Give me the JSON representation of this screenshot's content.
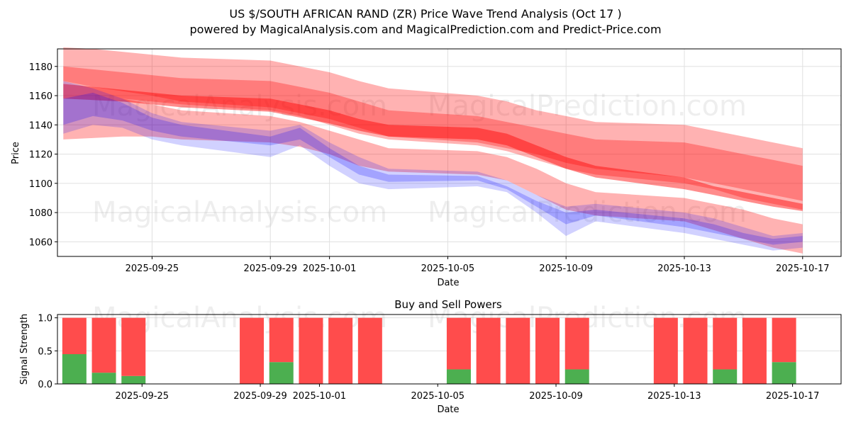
{
  "header": {
    "title": "US $/SOUTH AFRICAN RAND (ZR) Price Wave Trend Analysis (Oct 17 )",
    "subtitle": "powered by MagicalAnalysis.com and MagicalPrediction.com and Predict-Price.com"
  },
  "watermarks": [
    "MagicalAnalysis.com",
    "MagicalPrediction.com"
  ],
  "colors": {
    "sell": "#ff0000",
    "buy_band": "#0000ff",
    "buy_bar": "#4caf50",
    "sell_bar": "#ff4c4c",
    "grid": "#e0e0e0"
  },
  "chart_data": [
    {
      "type": "area",
      "title": "",
      "xlabel": "Date",
      "ylabel": "Price",
      "xlim": [
        "2025-09-21.8",
        "2025-10-18.3"
      ],
      "ylim": [
        1050,
        1192
      ],
      "grid": true,
      "x_ticks": [
        "2025-09-25",
        "2025-09-29",
        "2025-10-01",
        "2025-10-05",
        "2025-10-09",
        "2025-10-13",
        "2025-10-17"
      ],
      "y_ticks": [
        1060,
        1080,
        1100,
        1120,
        1140,
        1160,
        1180
      ],
      "x": [
        "2025-09-22",
        "2025-09-23",
        "2025-09-24",
        "2025-09-25",
        "2025-09-26",
        "2025-09-29",
        "2025-09-30",
        "2025-10-01",
        "2025-10-02",
        "2025-10-03",
        "2025-10-06",
        "2025-10-07",
        "2025-10-08",
        "2025-10-09",
        "2025-10-10",
        "2025-10-13",
        "2025-10-14",
        "2025-10-15",
        "2025-10-16",
        "2025-10-17"
      ],
      "series": [
        {
          "name": "sell-wave-outer",
          "color": "red",
          "upper": [
            1193,
            1192,
            1190,
            1188,
            1186,
            1184,
            1180,
            1176,
            1170,
            1165,
            1160,
            1156,
            1150,
            1146,
            1142,
            1140,
            1136,
            1132,
            1128,
            1124
          ],
          "lower": [
            1170,
            1166,
            1163,
            1160,
            1156,
            1152,
            1148,
            1144,
            1138,
            1132,
            1128,
            1124,
            1120,
            1114,
            1110,
            1104,
            1100,
            1096,
            1092,
            1088
          ]
        },
        {
          "name": "sell-wave-mid",
          "color": "red",
          "upper": [
            1180,
            1178,
            1176,
            1174,
            1172,
            1170,
            1166,
            1162,
            1156,
            1150,
            1146,
            1142,
            1138,
            1134,
            1130,
            1128,
            1124,
            1120,
            1116,
            1112
          ],
          "lower": [
            1162,
            1160,
            1158,
            1156,
            1154,
            1150,
            1146,
            1140,
            1134,
            1130,
            1126,
            1122,
            1116,
            1110,
            1106,
            1100,
            1096,
            1090,
            1086,
            1082
          ]
        },
        {
          "name": "sell-wave-core",
          "color": "red",
          "upper": [
            1168,
            1166,
            1164,
            1162,
            1160,
            1158,
            1154,
            1150,
            1144,
            1140,
            1138,
            1134,
            1126,
            1118,
            1112,
            1104,
            1098,
            1094,
            1090,
            1086
          ],
          "lower": [
            1158,
            1157,
            1156,
            1154,
            1152,
            1149,
            1145,
            1141,
            1136,
            1132,
            1130,
            1126,
            1118,
            1110,
            1104,
            1096,
            1092,
            1088,
            1084,
            1081
          ]
        },
        {
          "name": "sell-wave-low",
          "color": "red",
          "upper": [
            1162,
            1160,
            1158,
            1154,
            1150,
            1146,
            1142,
            1136,
            1130,
            1124,
            1122,
            1118,
            1110,
            1100,
            1094,
            1090,
            1086,
            1082,
            1076,
            1072
          ],
          "lower": [
            1130,
            1131,
            1132,
            1132,
            1130,
            1128,
            1125,
            1120,
            1112,
            1108,
            1106,
            1102,
            1092,
            1082,
            1078,
            1074,
            1068,
            1062,
            1056,
            1052
          ]
        },
        {
          "name": "buy-wave-outer",
          "color": "blue",
          "upper": [
            1170,
            1165,
            1158,
            1148,
            1142,
            1136,
            1140,
            1128,
            1118,
            1110,
            1108,
            1102,
            1092,
            1084,
            1086,
            1080,
            1076,
            1070,
            1064,
            1066
          ],
          "lower": [
            1134,
            1140,
            1138,
            1130,
            1126,
            1118,
            1126,
            1112,
            1100,
            1096,
            1098,
            1094,
            1080,
            1064,
            1074,
            1066,
            1062,
            1058,
            1054,
            1056
          ]
        },
        {
          "name": "buy-wave-core",
          "color": "blue",
          "upper": [
            1158,
            1162,
            1155,
            1145,
            1140,
            1132,
            1138,
            1124,
            1112,
            1106,
            1105,
            1098,
            1088,
            1080,
            1082,
            1076,
            1072,
            1066,
            1062,
            1064
          ],
          "lower": [
            1140,
            1146,
            1143,
            1136,
            1132,
            1126,
            1130,
            1118,
            1106,
            1101,
            1102,
            1096,
            1084,
            1072,
            1078,
            1070,
            1066,
            1062,
            1058,
            1060
          ]
        }
      ]
    },
    {
      "type": "bar",
      "title": "Buy and Sell Powers",
      "xlabel": "Date",
      "ylabel": "Signal Strength",
      "ylim": [
        0,
        1.05
      ],
      "grid": true,
      "x_ticks": [
        "2025-09-25",
        "2025-09-29",
        "2025-10-01",
        "2025-10-05",
        "2025-10-09",
        "2025-10-13",
        "2025-10-17"
      ],
      "y_ticks": [
        "0.0",
        "0.5",
        "1.0"
      ],
      "categories": [
        "2025-09-23",
        "2025-09-24",
        "2025-09-25",
        "2025-09-29",
        "2025-09-30",
        "2025-10-01",
        "2025-10-02",
        "2025-10-03",
        "2025-10-06",
        "2025-10-07",
        "2025-10-08",
        "2025-10-09",
        "2025-10-10",
        "2025-10-13",
        "2025-10-14",
        "2025-10-15",
        "2025-10-16",
        "2025-10-17"
      ],
      "series": [
        {
          "name": "Buy",
          "color": "green",
          "values": [
            0.45,
            0.17,
            0.12,
            0.0,
            0.33,
            0.0,
            0.0,
            0.0,
            0.22,
            0.0,
            0.0,
            0.0,
            0.22,
            0.0,
            0.0,
            0.22,
            0.0,
            0.33
          ]
        },
        {
          "name": "Sell",
          "color": "red",
          "values": [
            0.55,
            0.83,
            0.88,
            1.0,
            0.67,
            1.0,
            1.0,
            1.0,
            0.78,
            1.0,
            1.0,
            1.0,
            0.78,
            1.0,
            1.0,
            0.78,
            1.0,
            0.67
          ]
        }
      ]
    }
  ]
}
